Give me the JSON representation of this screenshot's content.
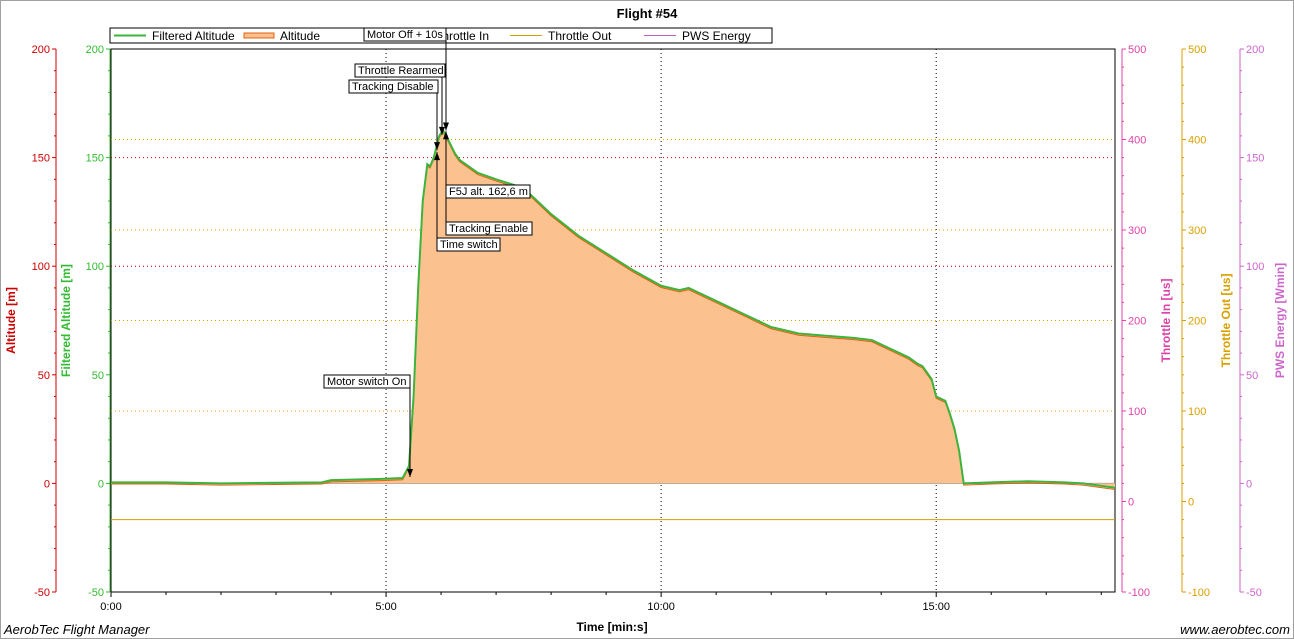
{
  "window": {
    "footer_left": "AerobTec Flight Manager",
    "footer_right": "www.aerobtec.com"
  },
  "chart_data": {
    "type": "area",
    "title": "Flight #54",
    "xlabel": "Time [min:s]",
    "x_ticks": [
      "0:00",
      "5:00",
      "10:00",
      "15:00"
    ],
    "x_range_seconds": [
      0,
      1095
    ],
    "grid": true,
    "legend": {
      "placement": "top",
      "entries": [
        {
          "label": "Filtered Altitude",
          "color": "#3cb43c"
        },
        {
          "label": "Altitude",
          "color": "#e06010"
        },
        {
          "label": "Throttle In",
          "color": "#d040a0"
        },
        {
          "label": "Throttle Out",
          "color": "#d0a000"
        },
        {
          "label": "PWS Energy",
          "color": "#c060c0"
        }
      ]
    },
    "axes": {
      "altitude": {
        "label": "Altitude [m]",
        "color": "#cc0000",
        "range": [
          -50,
          200
        ],
        "ticks": [
          "-50",
          "0",
          "50",
          "100",
          "150",
          "200"
        ]
      },
      "filtered_altitude": {
        "label": "Filtered Altitude [m]",
        "color": "#33bb33",
        "range": [
          -50,
          200
        ],
        "ticks": [
          "-50",
          "0",
          "50",
          "100",
          "150",
          "200"
        ]
      },
      "throttle_in": {
        "label": "Throttle In [us]",
        "color": "#dd44aa",
        "range": [
          -100,
          500
        ],
        "ticks": [
          "-100",
          "0",
          "100",
          "200",
          "300",
          "400",
          "500"
        ]
      },
      "throttle_out": {
        "label": "Throttle Out [us]",
        "color": "#d9a000",
        "range": [
          -100,
          500
        ],
        "ticks": [
          "-100",
          "0",
          "100",
          "200",
          "300",
          "400",
          "500"
        ]
      },
      "pws_energy": {
        "label": "PWS Energy [Wmin]",
        "color": "#cc66cc",
        "range": [
          -50,
          200
        ],
        "ticks": [
          "-50",
          "0",
          "50",
          "100",
          "150",
          "200"
        ]
      }
    },
    "series": [
      {
        "name": "Filtered Altitude",
        "x_seconds": [
          0,
          60,
          120,
          180,
          230,
          240,
          290,
          318,
          325,
          330,
          335,
          340,
          345,
          348,
          352,
          355,
          358,
          362,
          368,
          375,
          380,
          390,
          400,
          420,
          450,
          480,
          510,
          540,
          570,
          600,
          620,
          630,
          640,
          660,
          690,
          720,
          750,
          780,
          810,
          830,
          860,
          870,
          880,
          885,
          890,
          895,
          900,
          910,
          915,
          920,
          925,
          930,
          960,
          1000,
          1040,
          1060,
          1095
        ],
        "values": [
          0.5,
          0.5,
          0,
          0.3,
          0.5,
          1.5,
          2,
          2.5,
          8,
          40,
          90,
          130,
          147,
          146,
          150,
          155,
          160,
          162.6,
          158,
          152,
          149,
          146,
          143,
          140,
          136,
          124,
          114,
          106,
          98,
          91,
          89,
          90,
          88,
          84,
          78,
          72,
          69,
          68,
          67,
          66,
          60,
          58,
          55,
          54,
          51,
          48,
          40,
          38,
          32,
          25,
          15,
          0,
          0.5,
          1,
          0.5,
          0,
          -2
        ]
      },
      {
        "name": "Throttle Out",
        "x_seconds": [
          0,
          1095
        ],
        "values": [
          -20,
          -20
        ]
      }
    ],
    "annotations": [
      {
        "label": "Motor switch On",
        "x_seconds": 325,
        "value": 2.5
      },
      {
        "label": "Tracking Disable",
        "x_seconds": 355,
        "value": 153
      },
      {
        "label": "Throttle Rearmed",
        "x_seconds": 360,
        "value": 160
      },
      {
        "label": "Motor Off + 10s",
        "x_seconds": 365,
        "value": 162
      },
      {
        "label": "F5J alt. 162,6 m",
        "x_seconds": 365,
        "value": 162.6
      },
      {
        "label": "Tracking Enable",
        "x_seconds": 365,
        "value": 162.6
      },
      {
        "label": "Time switch",
        "x_seconds": 355,
        "value": 153
      }
    ]
  }
}
